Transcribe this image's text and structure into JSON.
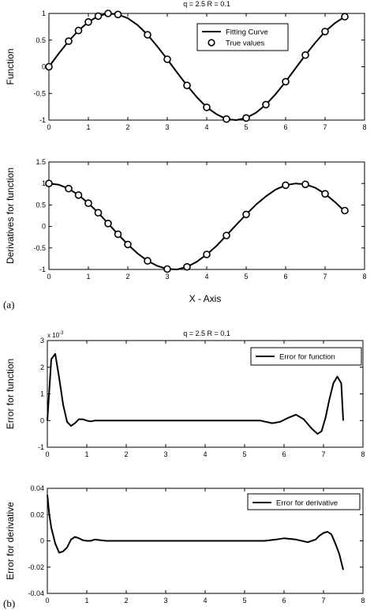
{
  "figure": {
    "title_a": "q = 2.5        R = 0.1",
    "title_b": "q = 2.5        R = 0.1",
    "label_a": "(a)",
    "label_b": "(b)",
    "shared_xlabel_a": "X - Axis",
    "exponent_c": "x 10",
    "exponent_c_power": "-3"
  },
  "chart_data": [
    {
      "type": "line",
      "ylabel": "Function",
      "xlim": [
        0,
        8
      ],
      "ylim": [
        -1,
        1
      ],
      "xticks": [
        "0",
        "1",
        "2",
        "3",
        "4",
        "5",
        "6",
        "7",
        "8"
      ],
      "yticks": [
        "-1",
        "-0.5",
        "0",
        "0.5",
        "1"
      ],
      "grid": false,
      "legend_position": "top-right",
      "series": [
        {
          "name": "Fitting Curve",
          "style": "line",
          "x": [
            0,
            0.25,
            0.5,
            0.75,
            1,
            1.25,
            1.5,
            1.75,
            2,
            2.25,
            2.5,
            2.75,
            3,
            3.25,
            3.5,
            3.75,
            4,
            4.25,
            4.5,
            4.75,
            5,
            5.25,
            5.5,
            5.75,
            6,
            6.25,
            6.5,
            6.75,
            7,
            7.25,
            7.5
          ],
          "y": [
            0,
            0.25,
            0.48,
            0.68,
            0.84,
            0.95,
            1,
            0.98,
            0.91,
            0.78,
            0.6,
            0.38,
            0.14,
            -0.11,
            -0.35,
            -0.57,
            -0.76,
            -0.89,
            -0.98,
            -1,
            -0.96,
            -0.86,
            -0.71,
            -0.51,
            -0.28,
            -0.03,
            0.22,
            0.45,
            0.66,
            0.82,
            0.94
          ]
        },
        {
          "name": "True values",
          "style": "circles",
          "x": [
            0,
            0.5,
            0.75,
            1,
            1.25,
            1.5,
            1.75,
            2.5,
            3,
            3.5,
            4,
            4.5,
            5,
            5.5,
            6,
            6.5,
            7,
            7.5
          ],
          "y": [
            0,
            0.48,
            0.68,
            0.84,
            0.95,
            1,
            0.98,
            0.6,
            0.14,
            -0.35,
            -0.76,
            -0.98,
            -0.96,
            -0.71,
            -0.28,
            0.22,
            0.66,
            0.94
          ]
        }
      ]
    },
    {
      "type": "line",
      "ylabel": "Derivatives for function",
      "xlim": [
        0,
        8
      ],
      "ylim": [
        -1,
        1.5
      ],
      "xticks": [
        "0",
        "1",
        "2",
        "3",
        "4",
        "5",
        "6",
        "7",
        "8"
      ],
      "yticks": [
        "-1",
        "-0.5",
        "0",
        "0.5",
        "1",
        "1.5"
      ],
      "grid": false,
      "series": [
        {
          "style": "line",
          "x": [
            0,
            0.25,
            0.5,
            0.75,
            1,
            1.25,
            1.5,
            1.75,
            2,
            2.25,
            2.5,
            2.75,
            3,
            3.25,
            3.5,
            3.75,
            4,
            4.25,
            4.5,
            4.75,
            5,
            5.25,
            5.5,
            5.75,
            6,
            6.25,
            6.5,
            6.75,
            7,
            7.25,
            7.5
          ],
          "y": [
            1,
            0.97,
            0.88,
            0.73,
            0.54,
            0.32,
            0.07,
            -0.18,
            -0.42,
            -0.63,
            -0.8,
            -0.92,
            -0.99,
            -1,
            -0.94,
            -0.82,
            -0.65,
            -0.45,
            -0.21,
            0.04,
            0.28,
            0.51,
            0.7,
            0.86,
            0.96,
            1,
            0.98,
            0.9,
            0.76,
            0.57,
            0.35
          ]
        },
        {
          "style": "circles",
          "x": [
            0,
            0.5,
            0.75,
            1,
            1.25,
            1.5,
            1.75,
            2,
            2.5,
            3,
            3.5,
            4,
            4.5,
            5,
            6,
            6.5,
            7,
            7.5
          ],
          "y": [
            1,
            0.88,
            0.73,
            0.54,
            0.32,
            0.07,
            -0.18,
            -0.42,
            -0.8,
            -0.99,
            -0.94,
            -0.65,
            -0.21,
            0.28,
            0.96,
            0.98,
            0.76,
            0.37
          ]
        }
      ]
    },
    {
      "type": "line",
      "ylabel": "Error for function",
      "xlim": [
        0,
        8
      ],
      "ylim": [
        -1,
        3
      ],
      "xticks": [
        "0",
        "1",
        "2",
        "3",
        "4",
        "5",
        "6",
        "7",
        "8"
      ],
      "yticks": [
        "-1",
        "0",
        "1",
        "2",
        "3"
      ],
      "grid": false,
      "legend_position": "top-right",
      "series": [
        {
          "name": "Error for function",
          "style": "line",
          "x": [
            0,
            0.1,
            0.2,
            0.3,
            0.4,
            0.5,
            0.6,
            0.7,
            0.8,
            0.9,
            1,
            1.1,
            1.2,
            1.5,
            2,
            3,
            4,
            5,
            5.4,
            5.7,
            5.9,
            6.1,
            6.3,
            6.5,
            6.7,
            6.85,
            6.95,
            7.05,
            7.15,
            7.25,
            7.35,
            7.45,
            7.5
          ],
          "y": [
            0,
            2.3,
            2.5,
            1.6,
            0.6,
            -0.05,
            -0.2,
            -0.1,
            0.05,
            0.05,
            0,
            -0.03,
            0,
            0,
            0,
            0,
            0,
            0,
            0,
            -0.1,
            -0.05,
            0.1,
            0.22,
            0.05,
            -0.3,
            -0.5,
            -0.4,
            0.1,
            0.8,
            1.4,
            1.65,
            1.4,
            0
          ]
        }
      ]
    },
    {
      "type": "line",
      "ylabel": "Error for derivative",
      "xlim": [
        0,
        8
      ],
      "ylim": [
        -0.04,
        0.04
      ],
      "xticks": [
        "0",
        "1",
        "2",
        "3",
        "4",
        "5",
        "6",
        "7",
        "8"
      ],
      "yticks": [
        "-0.04",
        "-0.02",
        "0",
        "0.02",
        "0.04"
      ],
      "grid": false,
      "legend_position": "top-right",
      "series": [
        {
          "name": "Error for derivative",
          "style": "line",
          "x": [
            0,
            0.05,
            0.1,
            0.2,
            0.3,
            0.4,
            0.5,
            0.6,
            0.7,
            0.8,
            0.9,
            1,
            1.1,
            1.2,
            1.5,
            2,
            3,
            4,
            5,
            5.5,
            5.8,
            6,
            6.3,
            6.6,
            6.8,
            6.9,
            7,
            7.1,
            7.2,
            7.3,
            7.4,
            7.5
          ],
          "y": [
            0.035,
            0.02,
            0.01,
            -0.002,
            -0.009,
            -0.008,
            -0.005,
            0.001,
            0.003,
            0.002,
            0.0005,
            0,
            0,
            0.001,
            0,
            0,
            0,
            0,
            0,
            0,
            0.001,
            0.002,
            0.001,
            -0.001,
            0.001,
            0.004,
            0.006,
            0.007,
            0.005,
            -0.002,
            -0.01,
            -0.022
          ]
        }
      ]
    }
  ]
}
